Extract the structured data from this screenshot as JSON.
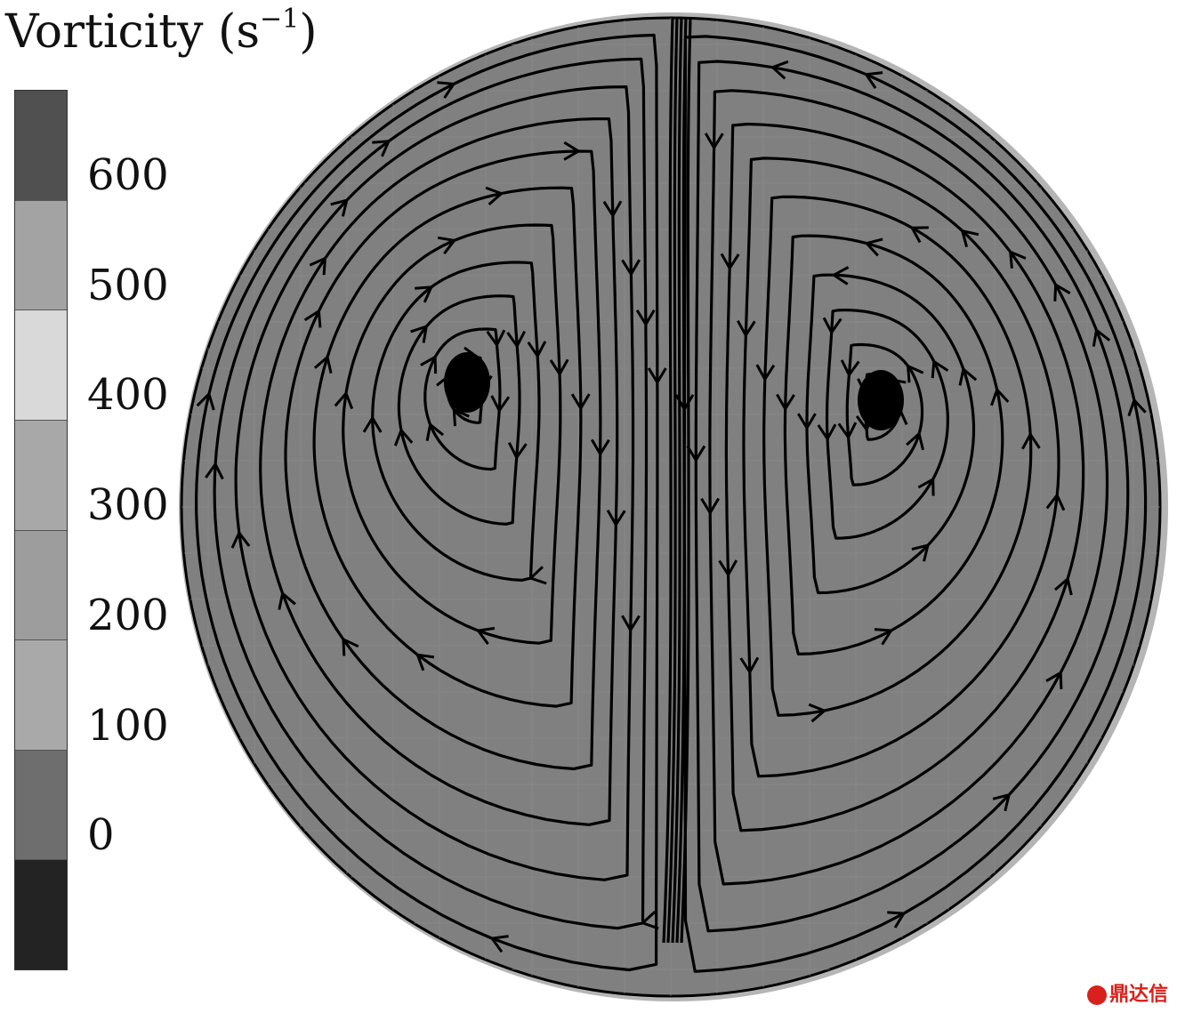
{
  "legend": {
    "title_main": "Vorticity (s",
    "title_sup": "−1",
    "title_close": ")",
    "ticks": [
      {
        "label": "600",
        "value": 600
      },
      {
        "label": "500",
        "value": 500
      },
      {
        "label": "400",
        "value": 400
      },
      {
        "label": "300",
        "value": 300
      },
      {
        "label": "200",
        "value": 200
      },
      {
        "label": "100",
        "value": 100
      },
      {
        "label": "0",
        "value": 0
      }
    ],
    "bands_top_to_bottom": [
      "#505050",
      "#a3a3a3",
      "#d9d9d9",
      "#a8a8a8",
      "#9d9d9d",
      "#a9a9a9",
      "#6e6e6e",
      "#232323"
    ]
  },
  "field": {
    "fill_color": "#808080",
    "rim_color": "#b5b5b5",
    "stroke_color": "#000000",
    "vortex_count": 2
  },
  "watermark": {
    "text": "鼎达信"
  }
}
